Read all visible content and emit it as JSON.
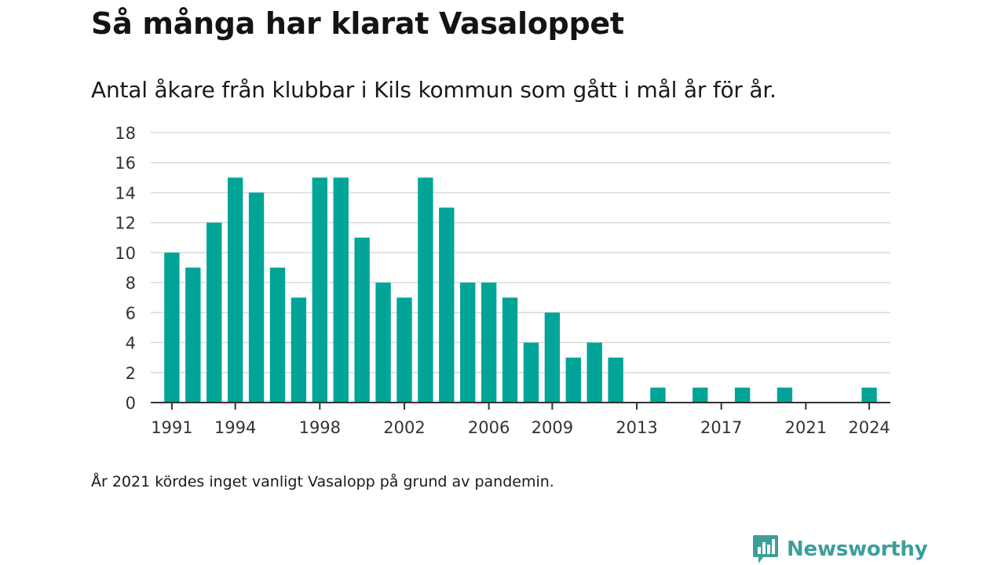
{
  "chart_data": {
    "type": "bar",
    "title": "Så många har klarat Vasaloppet",
    "subtitle": "Antal åkare från klubbar i Kils kommun som gått i mål år för år.",
    "xlabel": "",
    "ylabel": "",
    "ylim": [
      0,
      18
    ],
    "yticks": [
      "0",
      "2",
      "4",
      "6",
      "8",
      "10",
      "12",
      "14",
      "16",
      "18"
    ],
    "xlim": [
      1990,
      2025
    ],
    "xticks": [
      1991,
      1994,
      1998,
      2002,
      2006,
      2009,
      2013,
      2017,
      2021,
      2024
    ],
    "grid": true,
    "legend": "none",
    "bar_color": "#00a597",
    "x": [
      1991,
      1992,
      1993,
      1994,
      1995,
      1996,
      1997,
      1998,
      1999,
      2000,
      2001,
      2002,
      2003,
      2004,
      2005,
      2006,
      2007,
      2008,
      2009,
      2010,
      2011,
      2012,
      2014,
      2016,
      2018,
      2020,
      2024
    ],
    "values": [
      10,
      9,
      12,
      15,
      14,
      9,
      7,
      15,
      15,
      11,
      8,
      7,
      15,
      13,
      8,
      8,
      7,
      4,
      6,
      3,
      4,
      3,
      1,
      1,
      1,
      1,
      1
    ],
    "footnote": "År 2021 kördes inget vanligt Vasalopp på grund av pandemin."
  },
  "brand": {
    "name": "Newsworthy",
    "icon": "newsworthy-logo-icon",
    "color": "#3d9e9a"
  }
}
